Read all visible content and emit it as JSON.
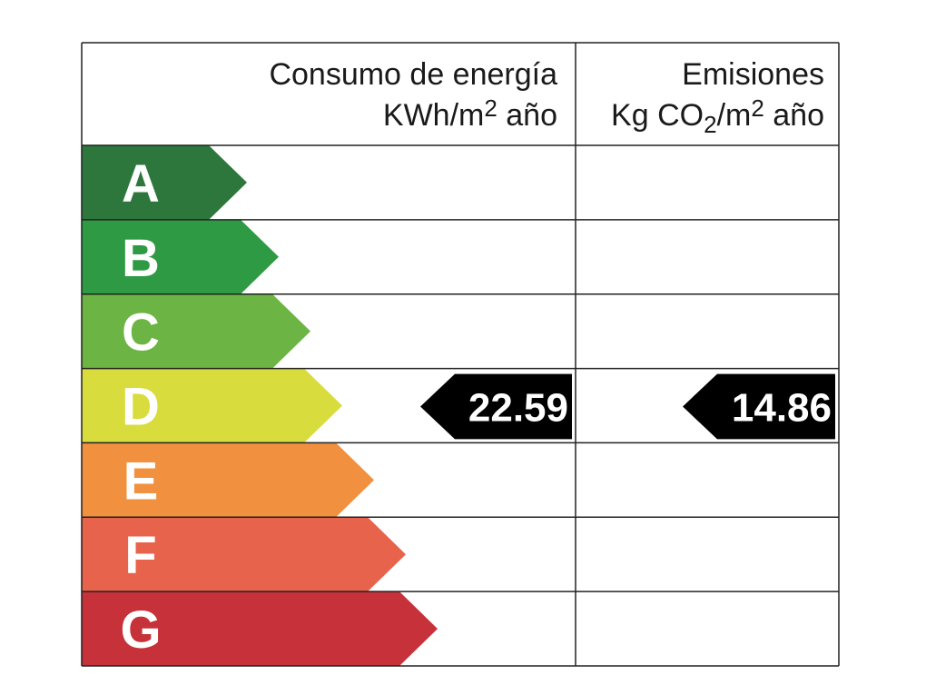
{
  "header": {
    "energy_title": "Consumo de energía",
    "energy_unit": [
      {
        "text": "KWh/m"
      },
      {
        "text": "2",
        "shift": "super"
      },
      {
        "text": " año"
      }
    ],
    "emissions_title": "Emisiones",
    "emissions_unit": [
      {
        "text": "Kg CO"
      },
      {
        "text": "2",
        "shift": "sub"
      },
      {
        "text": "/m"
      },
      {
        "text": "2",
        "shift": "super"
      },
      {
        "text": " año"
      }
    ]
  },
  "ratings": [
    {
      "letter": "A",
      "color": "#2e773c"
    },
    {
      "letter": "B",
      "color": "#2f9a44"
    },
    {
      "letter": "C",
      "color": "#6cb443"
    },
    {
      "letter": "D",
      "color": "#d8dc3c"
    },
    {
      "letter": "E",
      "color": "#f1903e"
    },
    {
      "letter": "F",
      "color": "#e8634b"
    },
    {
      "letter": "G",
      "color": "#c6313a"
    }
  ],
  "energy": {
    "rating": "D",
    "value": 22.59
  },
  "emissions": {
    "rating": "D",
    "value": 14.86
  }
}
